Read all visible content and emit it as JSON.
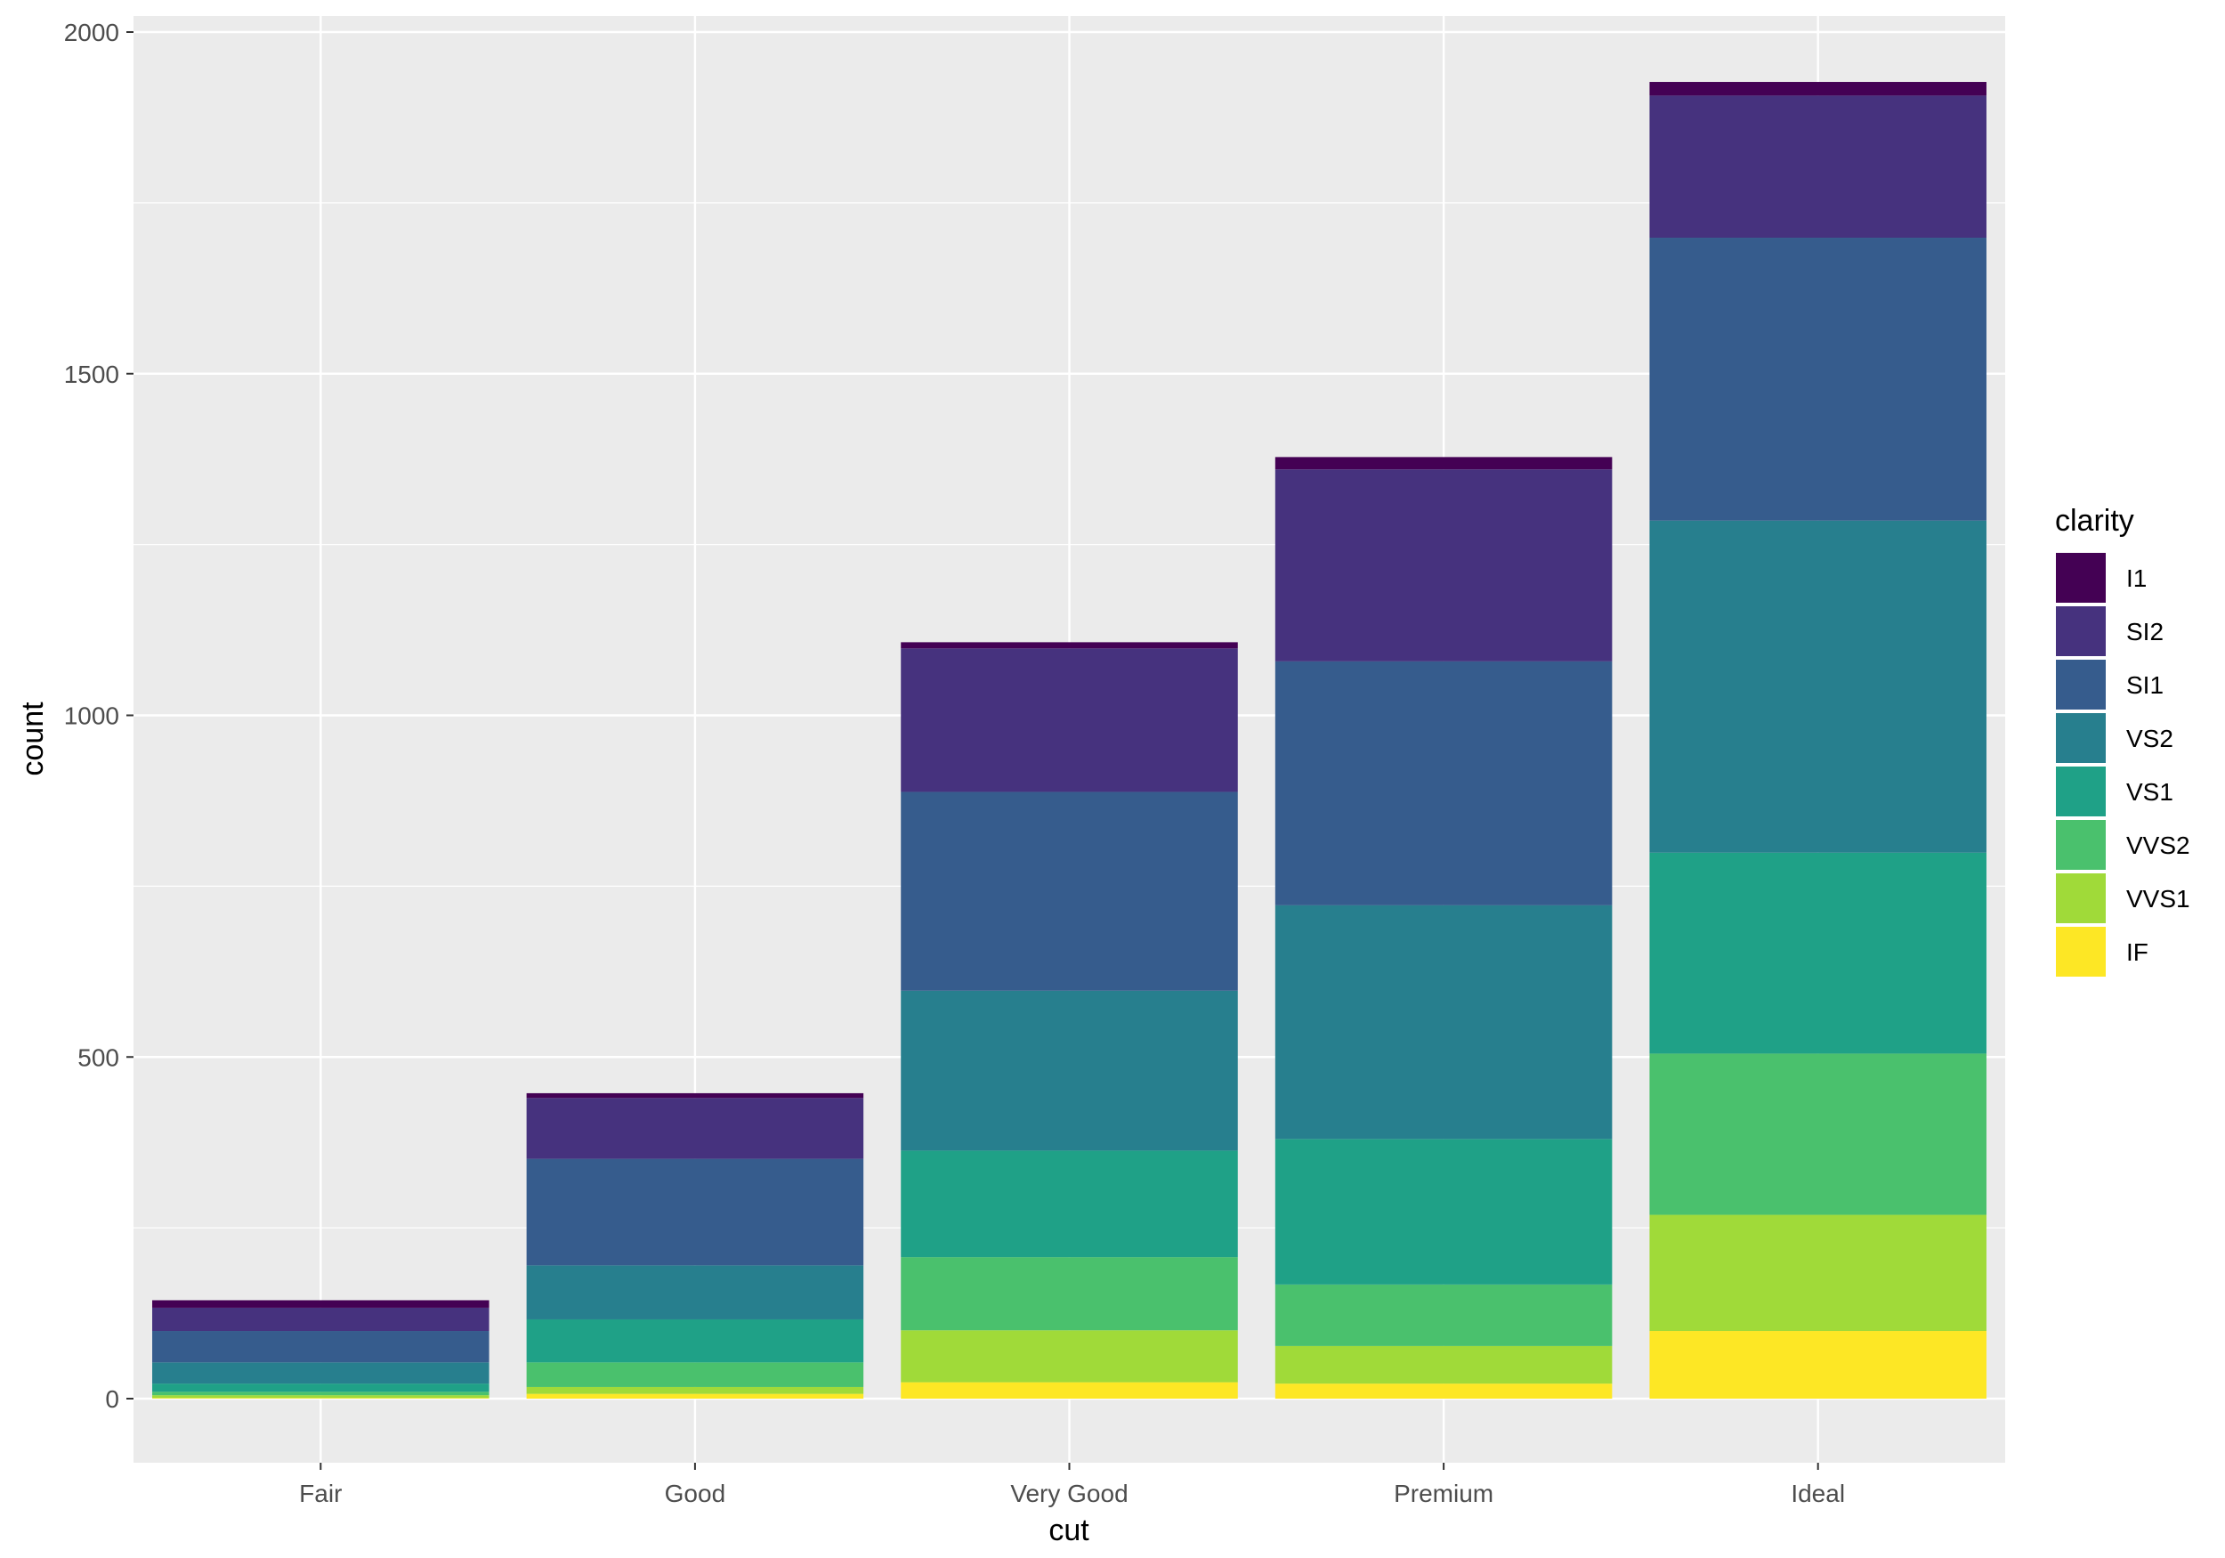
{
  "chart_data": {
    "type": "bar",
    "stacked": true,
    "categories": [
      "Fair",
      "Good",
      "Very Good",
      "Premium",
      "Ideal"
    ],
    "series": [
      {
        "name": "IF",
        "color": "#FDE725",
        "values": [
          1,
          7,
          24,
          22,
          99
        ]
      },
      {
        "name": "VVS1",
        "color": "#A0DA39",
        "values": [
          4,
          10,
          76,
          55,
          170
        ]
      },
      {
        "name": "VVS2",
        "color": "#4AC16D",
        "values": [
          5,
          36,
          107,
          90,
          236
        ]
      },
      {
        "name": "VS1",
        "color": "#1FA187",
        "values": [
          12,
          63,
          156,
          213,
          294
        ]
      },
      {
        "name": "VS2",
        "color": "#277F8E",
        "values": [
          31,
          79,
          234,
          342,
          486
        ]
      },
      {
        "name": "SI1",
        "color": "#365C8D",
        "values": [
          46,
          156,
          291,
          357,
          414
        ]
      },
      {
        "name": "SI2",
        "color": "#46327E",
        "values": [
          34,
          89,
          210,
          281,
          208
        ]
      },
      {
        "name": "I1",
        "color": "#440154",
        "values": [
          11,
          7,
          9,
          18,
          20
        ]
      }
    ],
    "legend": {
      "title": "clarity",
      "order": [
        "I1",
        "SI2",
        "SI1",
        "VS2",
        "VS1",
        "VVS2",
        "VVS1",
        "IF"
      ],
      "placement": "right"
    },
    "xlabel": "cut",
    "ylabel": "count",
    "yticks": [
      0,
      500,
      1000,
      1500,
      2000
    ],
    "ylim": [
      -100,
      2025
    ],
    "grid": true,
    "panel_color": "#EBEBEB"
  }
}
